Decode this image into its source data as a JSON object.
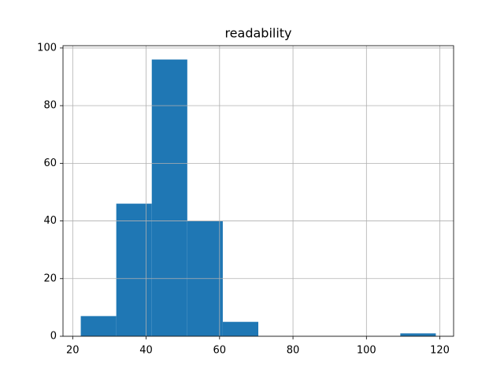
{
  "chart_data": {
    "type": "histogram",
    "title": "readability",
    "bins": [
      22.2,
      31.87,
      41.54,
      51.21,
      60.88,
      70.55,
      80.22,
      89.89,
      99.56,
      109.23,
      118.9
    ],
    "values": [
      7,
      46,
      96,
      40,
      5,
      0,
      0,
      0,
      0,
      1
    ],
    "color": "#1f77b4",
    "xlim": [
      17.36,
      123.74
    ],
    "xticks": [
      20,
      40,
      60,
      80,
      100,
      120
    ],
    "ylim": [
      0,
      100.8
    ],
    "yticks": [
      0,
      20,
      40,
      60,
      80,
      100
    ],
    "grid": true
  }
}
